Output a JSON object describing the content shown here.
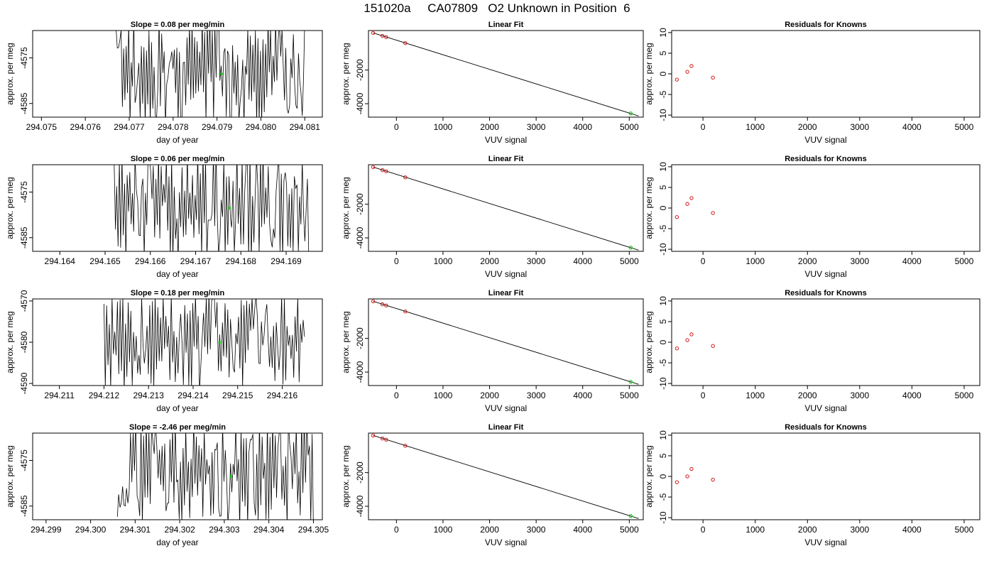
{
  "title": "151020a     CA07809   O2 Unknown in Position  6",
  "colors": {
    "trace": "#000000",
    "unknown_point": "#00cc00",
    "known_points": "#cc0000",
    "axis": "#000000"
  },
  "chart_data": [
    {
      "type": "line",
      "row": 0,
      "col": 0,
      "title": "Slope =  0.08  per meg/min",
      "xlabel": "day of year",
      "ylabel": "approx. per meg",
      "xlim": [
        294.0748,
        294.0814
      ],
      "ylim": [
        -4588,
        -4569
      ],
      "x_ticks": [
        294.075,
        294.076,
        294.077,
        294.078,
        294.079,
        294.08,
        294.081
      ],
      "x_tick_labels": [
        "294.075",
        "294.076",
        "294.077",
        "294.078",
        "294.079",
        "294.080",
        "294.081"
      ],
      "y_ticks": [
        -4575,
        -4585
      ],
      "y_tick_labels": [
        "-4575",
        "-4585"
      ],
      "trace": {
        "x_start": 294.0767,
        "x_end": 294.081,
        "y_low": -4590,
        "y_high": -4566,
        "seed": 11
      },
      "marker": {
        "x": 294.0791,
        "y": -4578.5
      }
    },
    {
      "type": "scatter",
      "row": 0,
      "col": 1,
      "title": "Linear Fit",
      "xlabel": "VUV signal",
      "ylabel": "approx. per meg",
      "xlim": [
        -600,
        5300
      ],
      "ylim": [
        -4800,
        350
      ],
      "x_ticks": [
        0,
        1000,
        2000,
        3000,
        4000,
        5000
      ],
      "x_tick_labels": [
        "0",
        "1000",
        "2000",
        "3000",
        "4000",
        "5000"
      ],
      "y_ticks": [
        -2000,
        -4000
      ],
      "y_tick_labels": [
        "-2000",
        "-4000"
      ],
      "fit_line": {
        "x": [
          -500,
          5200
        ],
        "y": [
          210,
          -4730
        ]
      },
      "known_points": {
        "x": [
          -500,
          -300,
          -220,
          190
        ],
        "y": [
          205,
          30,
          -40,
          -400
        ]
      },
      "unknown_point": {
        "x": [
          5030
        ],
        "y": [
          -4580
        ]
      }
    },
    {
      "type": "scatter",
      "row": 0,
      "col": 2,
      "title": "Residuals for Knowns",
      "xlabel": "VUV signal",
      "ylabel": "approx. per meg",
      "xlim": [
        -600,
        5300
      ],
      "ylim": [
        -10.5,
        10.5
      ],
      "x_ticks": [
        0,
        1000,
        2000,
        3000,
        4000,
        5000
      ],
      "x_tick_labels": [
        "0",
        "1000",
        "2000",
        "3000",
        "4000",
        "5000"
      ],
      "y_ticks": [
        10,
        5,
        0,
        -5,
        -10
      ],
      "y_tick_labels": [
        "10",
        "5",
        "0",
        "-5",
        "-10"
      ],
      "known_points": {
        "x": [
          -500,
          -300,
          -220,
          190
        ],
        "y": [
          -1.4,
          0.5,
          1.9,
          -0.9
        ]
      }
    },
    {
      "type": "line",
      "row": 1,
      "col": 0,
      "title": "Slope =  0.06  per meg/min",
      "xlabel": "day of year",
      "ylabel": "approx. per meg",
      "xlim": [
        294.1634,
        294.1698
      ],
      "ylim": [
        -4588,
        -4569
      ],
      "x_ticks": [
        294.164,
        294.165,
        294.166,
        294.167,
        294.168,
        294.169
      ],
      "x_tick_labels": [
        "294.164",
        "294.165",
        "294.166",
        "294.167",
        "294.168",
        "294.169"
      ],
      "y_ticks": [
        -4575,
        -4585
      ],
      "y_tick_labels": [
        "-4575",
        "-4585"
      ],
      "trace": {
        "x_start": 294.1652,
        "x_end": 294.1695,
        "y_low": -4590,
        "y_high": -4566,
        "seed": 23
      },
      "marker": {
        "x": 294.16775,
        "y": -4578.5
      }
    },
    {
      "type": "scatter",
      "row": 1,
      "col": 1,
      "title": "Linear Fit",
      "xlabel": "VUV signal",
      "ylabel": "approx. per meg",
      "xlim": [
        -600,
        5300
      ],
      "ylim": [
        -4800,
        350
      ],
      "x_ticks": [
        0,
        1000,
        2000,
        3000,
        4000,
        5000
      ],
      "x_tick_labels": [
        "0",
        "1000",
        "2000",
        "3000",
        "4000",
        "5000"
      ],
      "y_ticks": [
        -2000,
        -4000
      ],
      "y_tick_labels": [
        "-2000",
        "-4000"
      ],
      "fit_line": {
        "x": [
          -500,
          5200
        ],
        "y": [
          210,
          -4730
        ]
      },
      "known_points": {
        "x": [
          -500,
          -300,
          -220,
          190
        ],
        "y": [
          205,
          30,
          -40,
          -400
        ]
      },
      "unknown_point": {
        "x": [
          5030
        ],
        "y": [
          -4580
        ]
      }
    },
    {
      "type": "scatter",
      "row": 1,
      "col": 2,
      "title": "Residuals for Knowns",
      "xlabel": "VUV signal",
      "ylabel": "approx. per meg",
      "xlim": [
        -600,
        5300
      ],
      "ylim": [
        -10.5,
        10.5
      ],
      "x_ticks": [
        0,
        1000,
        2000,
        3000,
        4000,
        5000
      ],
      "x_tick_labels": [
        "0",
        "1000",
        "2000",
        "3000",
        "4000",
        "5000"
      ],
      "y_ticks": [
        10,
        5,
        0,
        -5,
        -10
      ],
      "y_tick_labels": [
        "10",
        "5",
        "0",
        "-5",
        "-10"
      ],
      "known_points": {
        "x": [
          -500,
          -300,
          -220,
          190
        ],
        "y": [
          -2.2,
          1.0,
          2.4,
          -1.2
        ]
      }
    },
    {
      "type": "line",
      "row": 2,
      "col": 0,
      "title": "Slope =  0.18  per meg/min",
      "xlabel": "day of year",
      "ylabel": "approx. per meg",
      "xlim": [
        294.2104,
        294.2169
      ],
      "ylim": [
        -4590.5,
        -4569.5
      ],
      "x_ticks": [
        294.211,
        294.212,
        294.213,
        294.214,
        294.215,
        294.216
      ],
      "x_tick_labels": [
        "294.211",
        "294.212",
        "294.213",
        "294.214",
        "294.215",
        "294.216"
      ],
      "y_ticks": [
        -4570,
        -4580,
        -4590
      ],
      "y_tick_labels": [
        "-4570",
        "-4580",
        "-4590"
      ],
      "trace": {
        "x_start": 294.212,
        "x_end": 294.2165,
        "y_low": -4592,
        "y_high": -4568,
        "seed": 37
      },
      "marker": {
        "x": 294.2146,
        "y": -4580
      }
    },
    {
      "type": "scatter",
      "row": 2,
      "col": 1,
      "title": "Linear Fit",
      "xlabel": "VUV signal",
      "ylabel": "approx. per meg",
      "xlim": [
        -600,
        5300
      ],
      "ylim": [
        -4800,
        350
      ],
      "x_ticks": [
        0,
        1000,
        2000,
        3000,
        4000,
        5000
      ],
      "x_tick_labels": [
        "0",
        "1000",
        "2000",
        "3000",
        "4000",
        "5000"
      ],
      "y_ticks": [
        -2000,
        -4000
      ],
      "y_tick_labels": [
        "-2000",
        "-4000"
      ],
      "fit_line": {
        "x": [
          -500,
          5200
        ],
        "y": [
          210,
          -4730
        ]
      },
      "known_points": {
        "x": [
          -500,
          -300,
          -220,
          190
        ],
        "y": [
          205,
          30,
          -40,
          -400
        ]
      },
      "unknown_point": {
        "x": [
          5030
        ],
        "y": [
          -4580
        ]
      }
    },
    {
      "type": "scatter",
      "row": 2,
      "col": 2,
      "title": "Residuals for Knowns",
      "xlabel": "VUV signal",
      "ylabel": "approx. per meg",
      "xlim": [
        -600,
        5300
      ],
      "ylim": [
        -10.5,
        10.5
      ],
      "x_ticks": [
        0,
        1000,
        2000,
        3000,
        4000,
        5000
      ],
      "x_tick_labels": [
        "0",
        "1000",
        "2000",
        "3000",
        "4000",
        "5000"
      ],
      "y_ticks": [
        10,
        5,
        0,
        -5,
        -10
      ],
      "y_tick_labels": [
        "10",
        "5",
        "0",
        "-5",
        "-10"
      ],
      "known_points": {
        "x": [
          -500,
          -300,
          -220,
          190
        ],
        "y": [
          -1.5,
          0.5,
          1.9,
          -0.9
        ]
      }
    },
    {
      "type": "line",
      "row": 3,
      "col": 0,
      "title": "Slope =  -2.46  per meg/min",
      "xlabel": "day of year",
      "ylabel": "approx. per meg",
      "xlim": [
        294.2987,
        294.3052
      ],
      "ylim": [
        -4588,
        -4569
      ],
      "x_ticks": [
        294.299,
        294.3,
        294.301,
        294.302,
        294.303,
        294.304,
        294.305
      ],
      "x_tick_labels": [
        "294.299",
        "294.300",
        "294.301",
        "294.302",
        "294.303",
        "294.304",
        "294.305"
      ],
      "y_ticks": [
        -4575,
        -4585
      ],
      "y_tick_labels": [
        "-4575",
        "-4585"
      ],
      "trace": {
        "x_start": 294.3006,
        "x_end": 294.305,
        "y_low": -4590,
        "y_high": -4566,
        "seed": 53
      },
      "marker": {
        "x": 294.30315,
        "y": -4578.5
      }
    },
    {
      "type": "scatter",
      "row": 3,
      "col": 1,
      "title": "Linear Fit",
      "xlabel": "VUV signal",
      "ylabel": "approx. per meg",
      "xlim": [
        -600,
        5300
      ],
      "ylim": [
        -4800,
        350
      ],
      "x_ticks": [
        0,
        1000,
        2000,
        3000,
        4000,
        5000
      ],
      "x_tick_labels": [
        "0",
        "1000",
        "2000",
        "3000",
        "4000",
        "5000"
      ],
      "y_ticks": [
        -2000,
        -4000
      ],
      "y_tick_labels": [
        "-2000",
        "-4000"
      ],
      "fit_line": {
        "x": [
          -500,
          5200
        ],
        "y": [
          210,
          -4730
        ]
      },
      "known_points": {
        "x": [
          -500,
          -300,
          -220,
          190
        ],
        "y": [
          205,
          30,
          -40,
          -400
        ]
      },
      "unknown_point": {
        "x": [
          5030
        ],
        "y": [
          -4580
        ]
      }
    },
    {
      "type": "scatter",
      "row": 3,
      "col": 2,
      "title": "Residuals for Knowns",
      "xlabel": "VUV signal",
      "ylabel": "approx. per meg",
      "xlim": [
        -600,
        5300
      ],
      "ylim": [
        -10.5,
        10.5
      ],
      "x_ticks": [
        0,
        1000,
        2000,
        3000,
        4000,
        5000
      ],
      "x_tick_labels": [
        "0",
        "1000",
        "2000",
        "3000",
        "4000",
        "5000"
      ],
      "y_ticks": [
        10,
        5,
        0,
        -5,
        -10
      ],
      "y_tick_labels": [
        "10",
        "5",
        "0",
        "-5",
        "-10"
      ],
      "known_points": {
        "x": [
          -500,
          -300,
          -220,
          190
        ],
        "y": [
          -1.4,
          0.0,
          1.8,
          -0.8
        ]
      }
    }
  ]
}
